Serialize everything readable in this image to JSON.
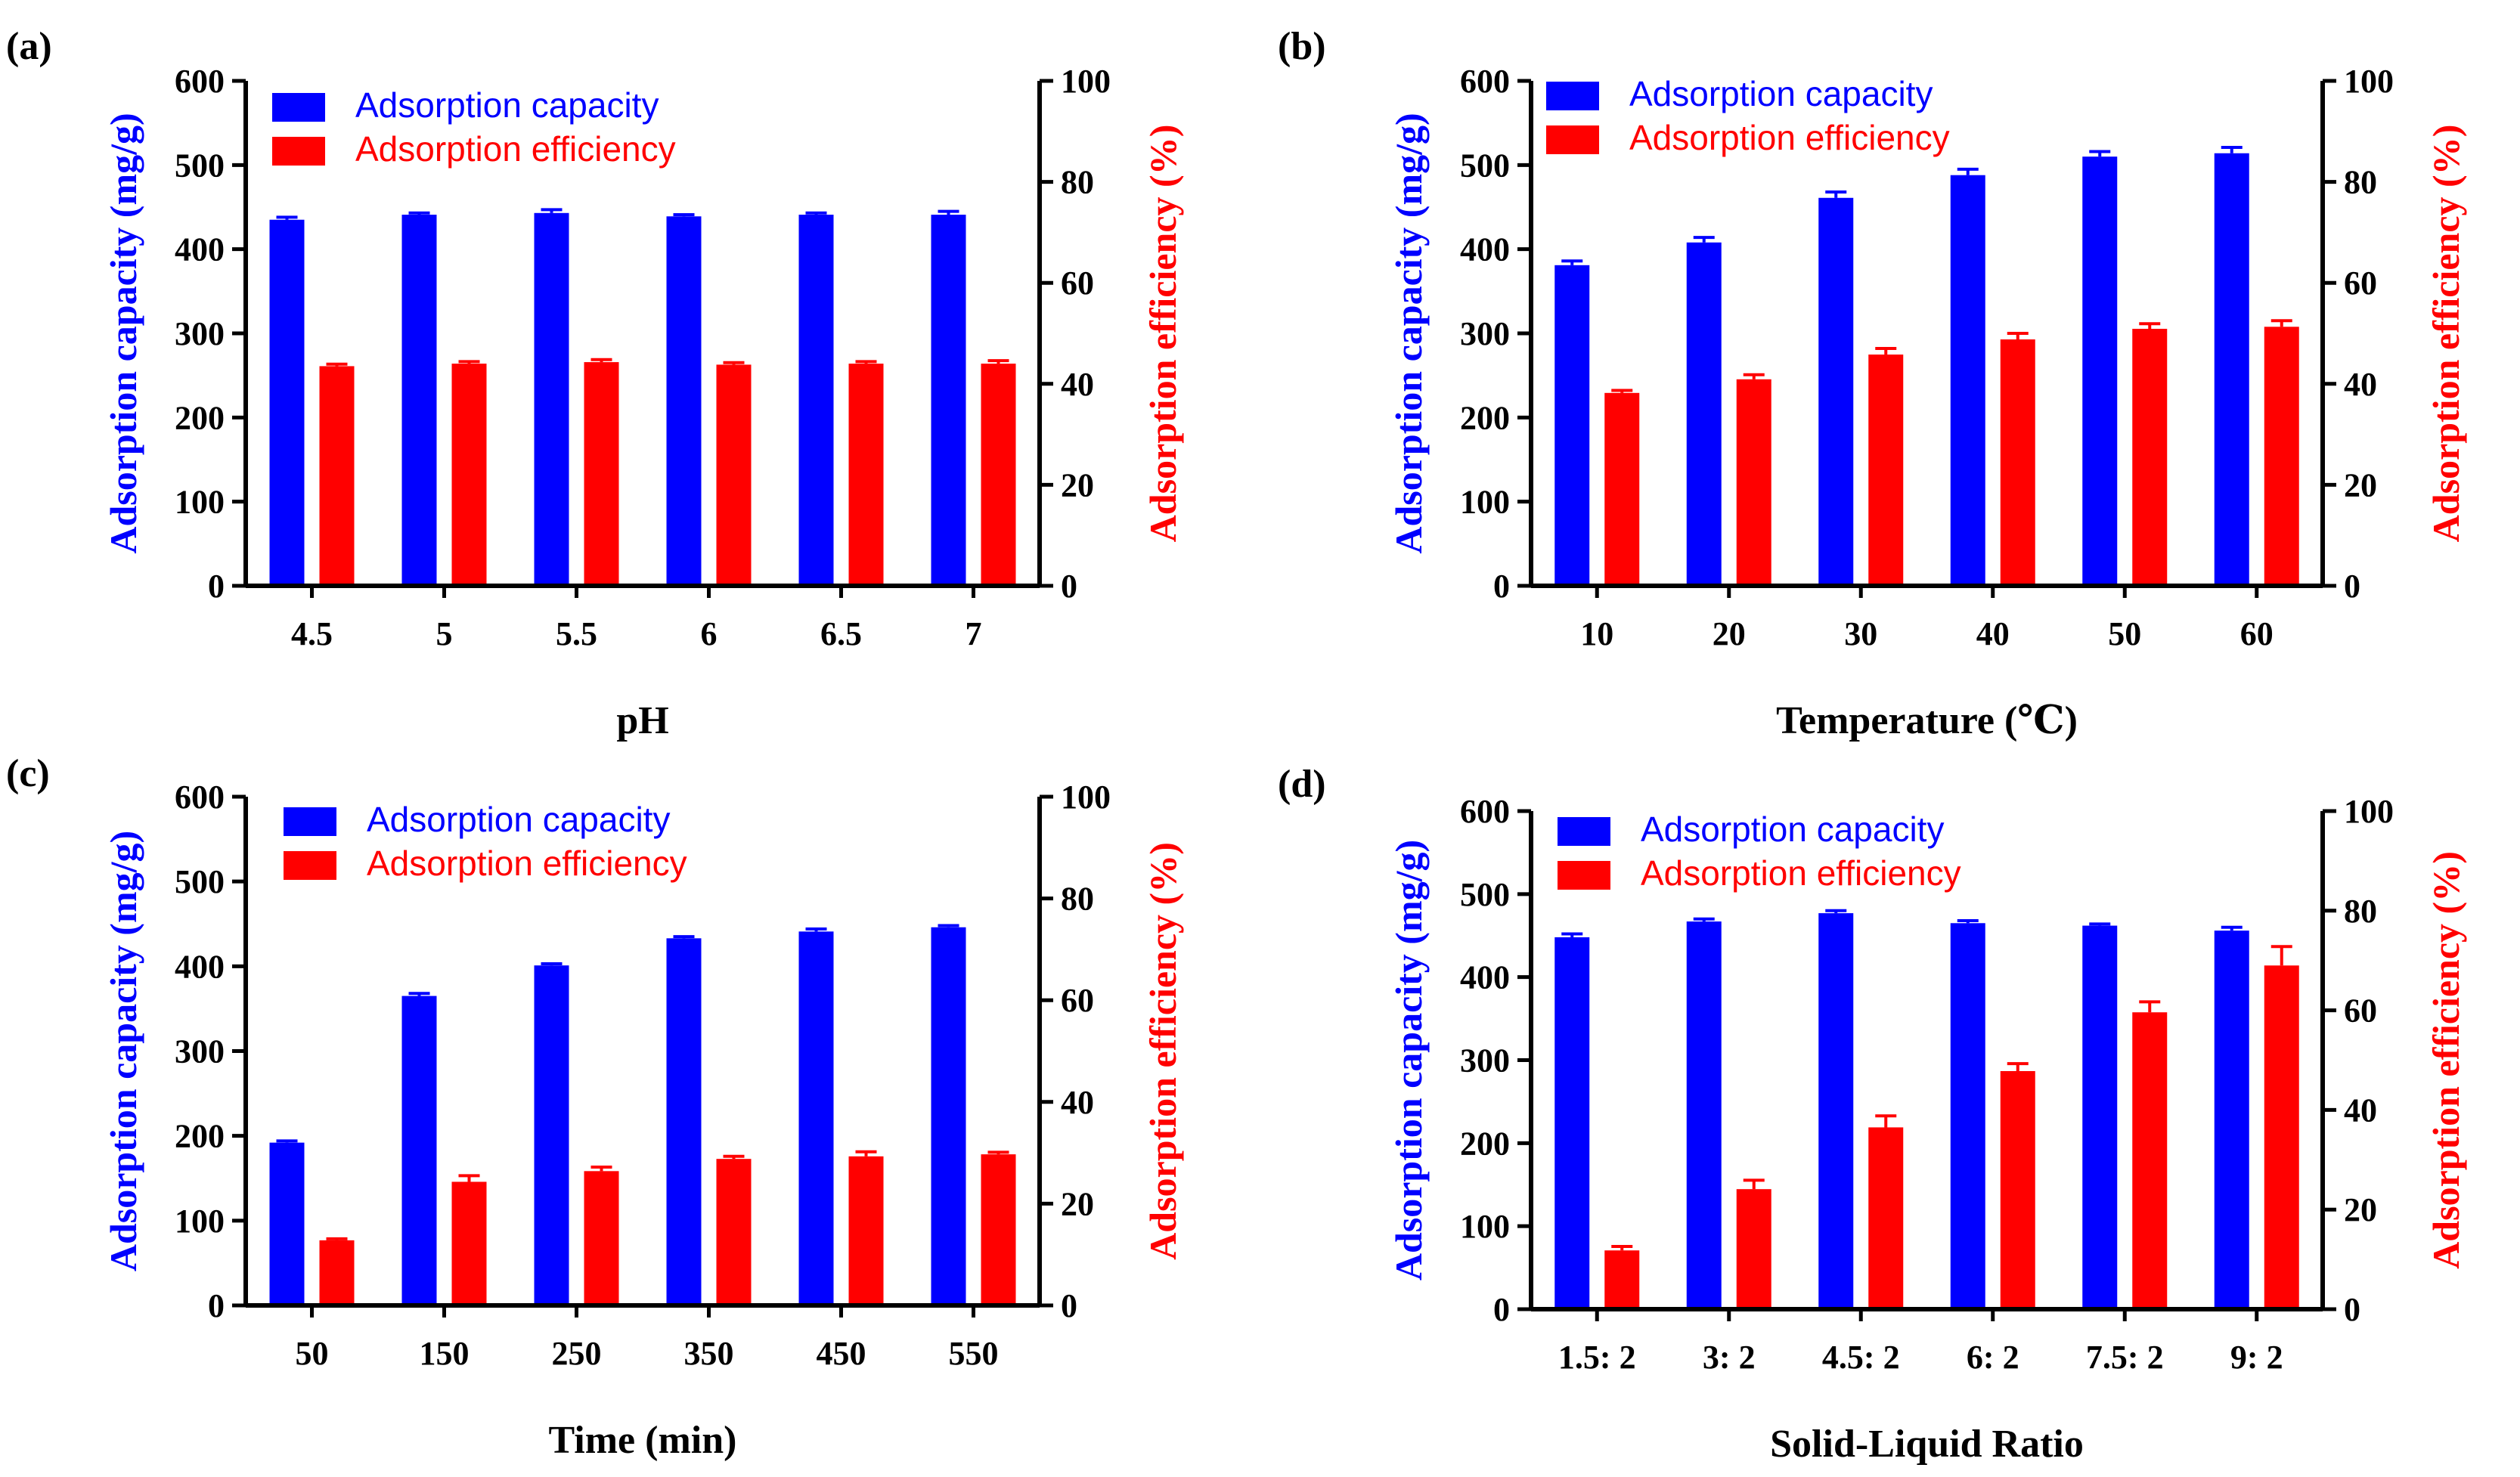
{
  "colors": {
    "capacity": "#0000ff",
    "efficiency": "#ff0000",
    "axis": "#000000"
  },
  "chart_data": [
    {
      "panel": "(a)",
      "type": "bar",
      "categories": [
        "4.5",
        "5",
        "5.5",
        "6",
        "6.5",
        "7"
      ],
      "xlabel": "pH",
      "ylabel_left": "Adsorption capacity (mg/g)",
      "ylabel_right": "Adsorption efficiency (%)",
      "ylim_left": [
        0,
        600
      ],
      "ylim_right": [
        0,
        100
      ],
      "yticks_left": [
        "0",
        "100",
        "200",
        "300",
        "400",
        "500",
        "600"
      ],
      "yticks_right": [
        "0",
        "20",
        "40",
        "60",
        "80",
        "100"
      ],
      "legend": [
        "Adsorption capacity",
        "Adsorption efficiency"
      ],
      "series": [
        {
          "name": "Adsorption capacity",
          "axis": "left",
          "values": [
            435,
            441,
            443,
            439,
            441,
            441
          ],
          "errors": [
            3,
            2,
            4,
            2,
            2,
            4
          ]
        },
        {
          "name": "Adsorption efficiency",
          "axis": "right",
          "values": [
            43.5,
            44.0,
            44.3,
            43.8,
            44.0,
            44.0
          ],
          "errors": [
            0.4,
            0.4,
            0.5,
            0.4,
            0.4,
            0.6
          ]
        }
      ]
    },
    {
      "panel": "(b)",
      "type": "bar",
      "categories": [
        "10",
        "20",
        "30",
        "40",
        "50",
        "60"
      ],
      "xlabel": "Temperature (℃)",
      "ylabel_left": "Adsorption capacity (mg/g)",
      "ylabel_right": "Adsorption efficiency (%)",
      "ylim_left": [
        0,
        600
      ],
      "ylim_right": [
        0,
        100
      ],
      "yticks_left": [
        "0",
        "100",
        "200",
        "300",
        "400",
        "500",
        "600"
      ],
      "yticks_right": [
        "0",
        "20",
        "40",
        "60",
        "80",
        "100"
      ],
      "legend": [
        "Adsorption capacity",
        "Adsorption efficiency"
      ],
      "series": [
        {
          "name": "Adsorption capacity",
          "axis": "left",
          "values": [
            381,
            408,
            461,
            488,
            510,
            514
          ],
          "errors": [
            5,
            6,
            7,
            7,
            6,
            7
          ]
        },
        {
          "name": "Adsorption efficiency",
          "axis": "right",
          "values": [
            38.2,
            40.9,
            45.8,
            48.8,
            50.9,
            51.3
          ],
          "errors": [
            0.5,
            0.9,
            1.2,
            1.2,
            1.0,
            1.2
          ]
        }
      ]
    },
    {
      "panel": "(c)",
      "type": "bar",
      "categories": [
        "50",
        "150",
        "250",
        "350",
        "450",
        "550"
      ],
      "xlabel": "Time (min)",
      "ylabel_left": "Adsorption capacity (mg/g)",
      "ylabel_right": "Adsorption efficiency (%)",
      "ylim_left": [
        0,
        600
      ],
      "ylim_right": [
        0,
        100
      ],
      "yticks_left": [
        "0",
        "100",
        "200",
        "300",
        "400",
        "500",
        "600"
      ],
      "yticks_right": [
        "0",
        "20",
        "40",
        "60",
        "80",
        "100"
      ],
      "legend": [
        "Adsorption capacity",
        "Adsorption efficiency"
      ],
      "series": [
        {
          "name": "Adsorption capacity",
          "axis": "left",
          "values": [
            192,
            365,
            401,
            433,
            441,
            446
          ],
          "errors": [
            2,
            3,
            2,
            2,
            3,
            2
          ]
        },
        {
          "name": "Adsorption efficiency",
          "axis": "right",
          "values": [
            12.8,
            24.3,
            26.4,
            28.8,
            29.3,
            29.7
          ],
          "errors": [
            0.3,
            1.2,
            0.8,
            0.5,
            0.9,
            0.4
          ]
        }
      ]
    },
    {
      "panel": "(d)",
      "type": "bar",
      "categories": [
        "1.5: 2",
        "3: 2",
        "4.5: 2",
        "6: 2",
        "7.5: 2",
        "9: 2"
      ],
      "xlabel": "Solid-Liquid Ratio",
      "ylabel_left": "Adsorption capacity (mg/g)",
      "ylabel_right": "Adsorption efficiency (%)",
      "ylim_left": [
        0,
        600
      ],
      "ylim_right": [
        0,
        100
      ],
      "yticks_left": [
        "0",
        "100",
        "200",
        "300",
        "400",
        "500",
        "600"
      ],
      "yticks_right": [
        "0",
        "20",
        "40",
        "60",
        "80",
        "100"
      ],
      "legend": [
        "Adsorption capacity",
        "Adsorption efficiency"
      ],
      "series": [
        {
          "name": "Adsorption capacity",
          "axis": "left",
          "values": [
            448,
            467,
            477,
            465,
            462,
            456
          ],
          "errors": [
            4,
            3,
            3,
            3,
            2,
            4
          ]
        },
        {
          "name": "Adsorption efficiency",
          "axis": "right",
          "values": [
            11.8,
            24.1,
            36.5,
            47.8,
            59.6,
            69.0
          ],
          "errors": [
            0.8,
            1.8,
            2.3,
            1.5,
            2.1,
            3.8
          ]
        }
      ]
    }
  ]
}
